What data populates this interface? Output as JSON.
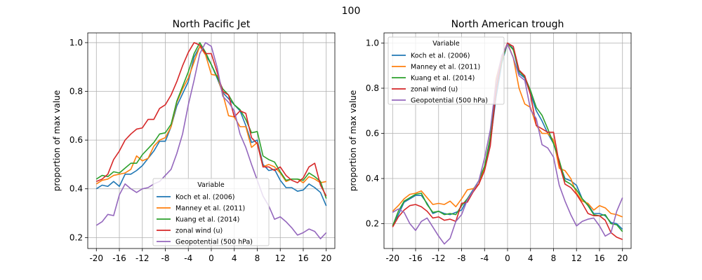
{
  "figure": {
    "suptitle": "100"
  },
  "chart_data": [
    {
      "type": "line",
      "title": "North Pacific Jet",
      "ylabel": "proportion of max value",
      "xlabel": "",
      "xlim": [
        -21.5,
        21.5
      ],
      "ylim": [
        0.155,
        1.04
      ],
      "xticks": [
        -20,
        -16,
        -12,
        -8,
        -4,
        0,
        4,
        8,
        12,
        16,
        20
      ],
      "yticks": [
        0.2,
        0.4,
        0.6,
        0.8,
        1.0
      ],
      "ytick_labels": [
        "0.2",
        "0.4",
        "0.6",
        "0.8",
        "1.0"
      ],
      "grid": true,
      "legend": {
        "title": "Variable",
        "placement": "lower-center"
      },
      "x": [
        -20,
        -19,
        -18,
        -17,
        -16,
        -15,
        -14,
        -13,
        -12,
        -11,
        -10,
        -9,
        -8,
        -7,
        -6,
        -5,
        -4,
        -3,
        -2,
        -1,
        0,
        1,
        2,
        3,
        4,
        5,
        6,
        7,
        8,
        9,
        10,
        11,
        12,
        13,
        14,
        15,
        16,
        17,
        18,
        19,
        20
      ],
      "series": [
        {
          "name": "Koch et al. (2006)",
          "color": "#1f77b4",
          "values": [
            0.4,
            0.415,
            0.41,
            0.43,
            0.41,
            0.46,
            0.46,
            0.475,
            0.495,
            0.525,
            0.555,
            0.595,
            0.595,
            0.655,
            0.74,
            0.79,
            0.84,
            0.94,
            0.985,
            0.95,
            0.91,
            0.855,
            0.795,
            0.77,
            0.745,
            0.72,
            0.66,
            0.59,
            0.6,
            0.5,
            0.475,
            0.48,
            0.435,
            0.405,
            0.405,
            0.39,
            0.395,
            0.42,
            0.405,
            0.385,
            0.33
          ]
        },
        {
          "name": "Manney et al. (2011)",
          "color": "#ff7f0e",
          "values": [
            0.42,
            0.435,
            0.44,
            0.455,
            0.46,
            0.465,
            0.48,
            0.535,
            0.515,
            0.525,
            0.575,
            0.6,
            0.61,
            0.655,
            0.755,
            0.81,
            0.855,
            0.92,
            0.985,
            0.95,
            0.87,
            0.865,
            0.79,
            0.7,
            0.695,
            0.655,
            0.655,
            0.57,
            0.59,
            0.49,
            0.5,
            0.49,
            0.465,
            0.43,
            0.44,
            0.44,
            0.425,
            0.45,
            0.44,
            0.425,
            0.43
          ]
        },
        {
          "name": "Kuang et al. (2014)",
          "color": "#2ca02c",
          "values": [
            0.44,
            0.455,
            0.45,
            0.47,
            0.465,
            0.485,
            0.505,
            0.505,
            0.54,
            0.565,
            0.59,
            0.625,
            0.63,
            0.665,
            0.76,
            0.82,
            0.88,
            0.955,
            1.0,
            0.96,
            0.91,
            0.86,
            0.81,
            0.785,
            0.745,
            0.725,
            0.685,
            0.63,
            0.635,
            0.535,
            0.52,
            0.51,
            0.47,
            0.435,
            0.44,
            0.44,
            0.435,
            0.465,
            0.45,
            0.43,
            0.36
          ]
        },
        {
          "name": "zonal wind (u)",
          "color": "#d62728",
          "values": [
            0.43,
            0.44,
            0.46,
            0.52,
            0.555,
            0.6,
            0.625,
            0.645,
            0.65,
            0.685,
            0.685,
            0.73,
            0.745,
            0.785,
            0.84,
            0.905,
            0.96,
            1.0,
            0.99,
            0.955,
            0.955,
            0.88,
            0.8,
            0.785,
            0.695,
            0.72,
            0.71,
            0.61,
            0.585,
            0.49,
            0.49,
            0.475,
            0.49,
            0.455,
            0.435,
            0.425,
            0.445,
            0.49,
            0.505,
            0.415,
            0.37
          ]
        },
        {
          "name": "Geopotential (500 hPa)",
          "color": "#9467bd",
          "values": [
            0.25,
            0.265,
            0.295,
            0.29,
            0.375,
            0.42,
            0.4,
            0.385,
            0.4,
            0.405,
            0.42,
            0.43,
            0.455,
            0.48,
            0.545,
            0.625,
            0.745,
            0.845,
            0.955,
            1.0,
            0.985,
            0.9,
            0.78,
            0.755,
            0.72,
            0.625,
            0.57,
            0.5,
            0.435,
            0.37,
            0.33,
            0.275,
            0.285,
            0.265,
            0.24,
            0.21,
            0.22,
            0.235,
            0.225,
            0.195,
            0.22
          ]
        }
      ]
    },
    {
      "type": "line",
      "title": "North American trough",
      "ylabel": "proportion of max value",
      "xlabel": "",
      "xlim": [
        -21.5,
        21.5
      ],
      "ylim": [
        0.09,
        1.045
      ],
      "xticks": [
        -20,
        -16,
        -12,
        -8,
        -4,
        0,
        4,
        8,
        12,
        16,
        20
      ],
      "yticks": [
        0.2,
        0.4,
        0.6,
        0.8,
        1.0
      ],
      "ytick_labels": [
        "0.2",
        "0.4",
        "0.6",
        "0.8",
        "1.0"
      ],
      "grid": true,
      "legend": {
        "title": "Variable",
        "placement": "upper-left"
      },
      "x": [
        -20,
        -19,
        -18,
        -17,
        -16,
        -15,
        -14,
        -13,
        -12,
        -11,
        -10,
        -9,
        -8,
        -7,
        -6,
        -5,
        -4,
        -3,
        -2,
        -1,
        0,
        1,
        2,
        3,
        4,
        5,
        6,
        7,
        8,
        9,
        10,
        11,
        12,
        13,
        14,
        15,
        16,
        17,
        18,
        19,
        20
      ],
      "series": [
        {
          "name": "Koch et al. (2006)",
          "color": "#1f77b4",
          "values": [
            0.19,
            0.24,
            0.295,
            0.31,
            0.325,
            0.325,
            0.29,
            0.245,
            0.255,
            0.245,
            0.24,
            0.25,
            0.26,
            0.31,
            0.35,
            0.39,
            0.445,
            0.56,
            0.76,
            0.91,
            1.0,
            0.975,
            0.865,
            0.845,
            0.775,
            0.7,
            0.655,
            0.6,
            0.555,
            0.47,
            0.4,
            0.39,
            0.37,
            0.31,
            0.285,
            0.245,
            0.245,
            0.235,
            0.205,
            0.2,
            0.175
          ]
        },
        {
          "name": "Manney et al. (2011)",
          "color": "#ff7f0e",
          "values": [
            0.255,
            0.28,
            0.31,
            0.33,
            0.335,
            0.345,
            0.315,
            0.285,
            0.29,
            0.285,
            0.3,
            0.275,
            0.31,
            0.35,
            0.355,
            0.375,
            0.45,
            0.585,
            0.84,
            0.94,
            1.0,
            0.935,
            0.8,
            0.73,
            0.715,
            0.635,
            0.6,
            0.6,
            0.57,
            0.445,
            0.435,
            0.4,
            0.335,
            0.3,
            0.29,
            0.26,
            0.28,
            0.27,
            0.245,
            0.24,
            0.23
          ]
        },
        {
          "name": "Kuang et al. (2014)",
          "color": "#2ca02c",
          "values": [
            0.19,
            0.255,
            0.3,
            0.315,
            0.33,
            0.335,
            0.285,
            0.25,
            0.255,
            0.24,
            0.245,
            0.24,
            0.28,
            0.31,
            0.345,
            0.39,
            0.455,
            0.58,
            0.8,
            0.92,
            1.0,
            0.97,
            0.875,
            0.85,
            0.79,
            0.715,
            0.68,
            0.62,
            0.555,
            0.48,
            0.39,
            0.375,
            0.35,
            0.31,
            0.28,
            0.24,
            0.235,
            0.24,
            0.2,
            0.195,
            0.165
          ]
        },
        {
          "name": "zonal wind (u)",
          "color": "#d62728",
          "values": [
            0.185,
            0.23,
            0.26,
            0.28,
            0.285,
            0.275,
            0.255,
            0.225,
            0.23,
            0.215,
            0.22,
            0.21,
            0.29,
            0.295,
            0.34,
            0.375,
            0.435,
            0.545,
            0.79,
            0.935,
            1.0,
            0.985,
            0.88,
            0.855,
            0.77,
            0.635,
            0.62,
            0.605,
            0.605,
            0.465,
            0.375,
            0.36,
            0.33,
            0.29,
            0.245,
            0.235,
            0.235,
            0.215,
            0.16,
            0.14,
            0.13
          ]
        },
        {
          "name": "Geopotential (500 hPa)",
          "color": "#9467bd",
          "values": [
            0.25,
            0.265,
            0.25,
            0.2,
            0.17,
            0.21,
            0.225,
            0.185,
            0.145,
            0.11,
            0.135,
            0.21,
            0.24,
            0.305,
            0.345,
            0.39,
            0.49,
            0.615,
            0.825,
            0.945,
            0.995,
            0.935,
            0.855,
            0.835,
            0.705,
            0.665,
            0.55,
            0.535,
            0.495,
            0.37,
            0.3,
            0.24,
            0.19,
            0.21,
            0.22,
            0.225,
            0.19,
            0.145,
            0.16,
            0.255,
            0.315
          ]
        }
      ]
    }
  ]
}
